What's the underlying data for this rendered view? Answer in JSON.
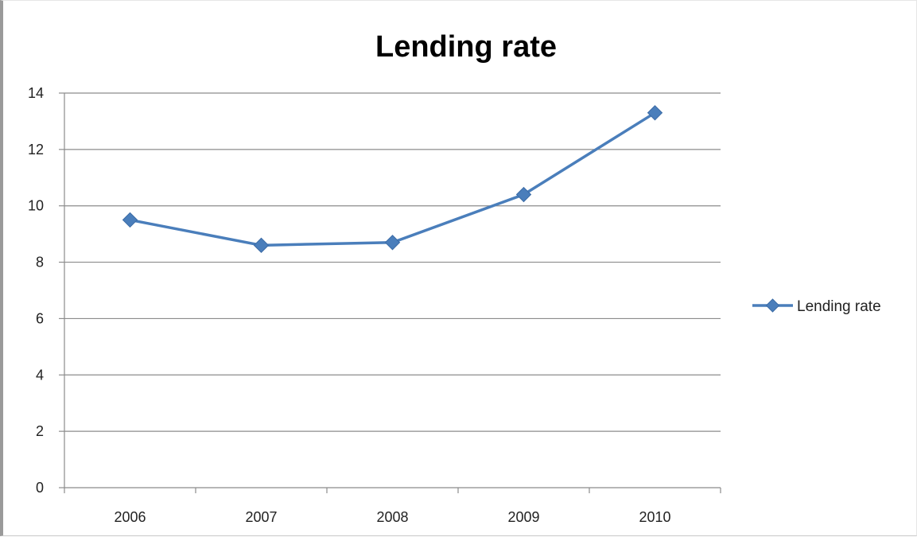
{
  "chart_data": {
    "type": "line",
    "title": "Lending rate",
    "categories": [
      "2006",
      "2007",
      "2008",
      "2009",
      "2010"
    ],
    "series": [
      {
        "name": "Lending rate",
        "values": [
          9.5,
          8.6,
          8.7,
          10.4,
          13.3
        ],
        "color": "#4a7ebb"
      }
    ],
    "ylim": [
      0,
      14
    ],
    "yticks": [
      "0",
      "2",
      "4",
      "6",
      "8",
      "10",
      "12",
      "14"
    ],
    "grid": true,
    "legend": "right"
  }
}
